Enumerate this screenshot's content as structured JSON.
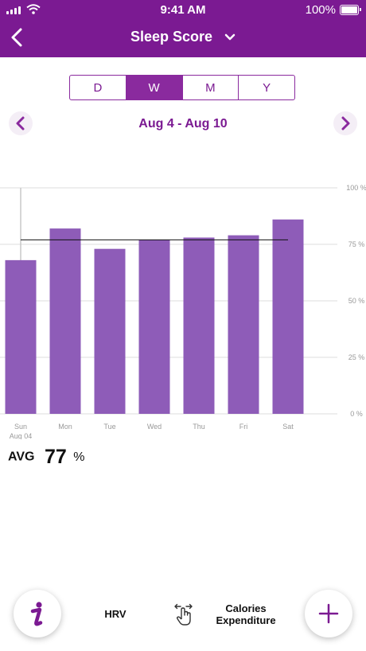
{
  "status_bar": {
    "time": "9:41 AM",
    "battery": "100%"
  },
  "header": {
    "title": "Sleep Score"
  },
  "period_tabs": [
    {
      "label": "D",
      "active": false
    },
    {
      "label": "W",
      "active": true
    },
    {
      "label": "M",
      "active": false
    },
    {
      "label": "Y",
      "active": false
    }
  ],
  "date_range": "Aug 4 - Aug 10",
  "colors": {
    "brand": "#7b1a92",
    "bar": "#8e5cb8"
  },
  "chart_data": {
    "type": "bar",
    "categories": [
      "Sun",
      "Mon",
      "Tue",
      "Wed",
      "Thu",
      "Fri",
      "Sat"
    ],
    "category_sublabels": [
      "Aug 04",
      "",
      "",
      "",
      "",
      "",
      ""
    ],
    "values": [
      68,
      82,
      73,
      77,
      78,
      79,
      86
    ],
    "average_line": 77,
    "ylim": [
      0,
      100
    ],
    "y_ticks": [
      "0 %",
      "25 %",
      "50 %",
      "75 %",
      "100 %"
    ],
    "grid": true,
    "selected_category": "Sun"
  },
  "summary": {
    "avg_label": "AVG",
    "avg_value": "77",
    "avg_unit": "%"
  },
  "bottom_bar": {
    "icons": [
      "info-icon",
      "swipe-hand-icon",
      "plus-icon"
    ],
    "left_label": "HRV",
    "right_label_line1": "Calories",
    "right_label_line2": "Expenditure"
  }
}
